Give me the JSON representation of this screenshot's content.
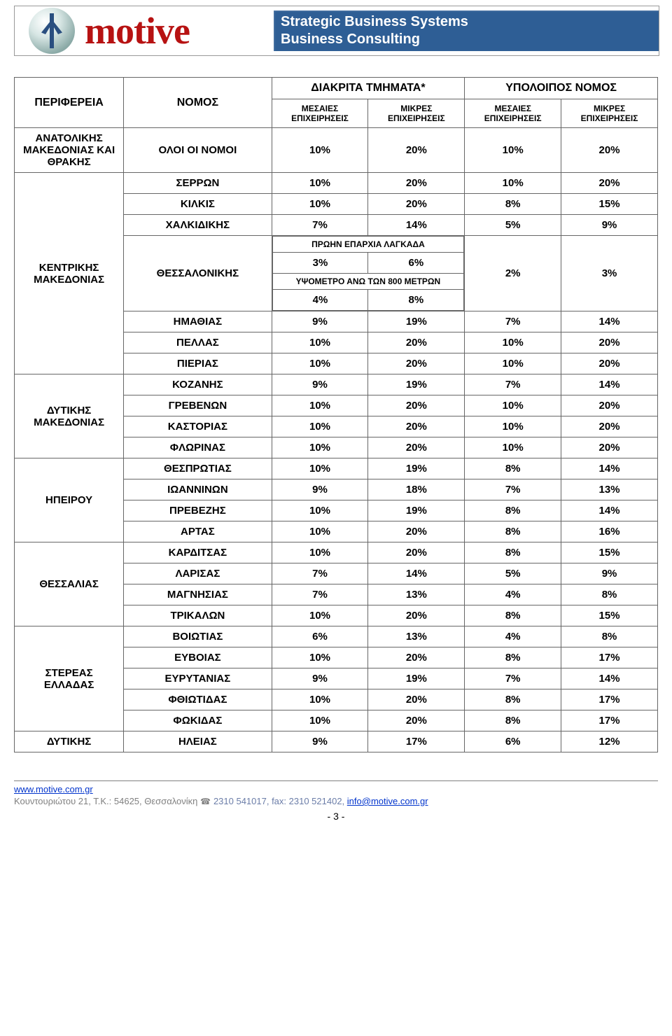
{
  "banner": {
    "brand": "motive",
    "tag1": "Strategic Business Systems",
    "tag2": "Business Consulting"
  },
  "header": {
    "col1": "ΠΕΡΙΦΕΡΕΙΑ",
    "col2": "ΝΟΜΟΣ",
    "group1": "ΔΙΑΚΡΙΤΑ ΤΜΗΜΑΤΑ*",
    "group2": "ΥΠΟΛΟΙΠΟΣ ΝΟΜΟΣ",
    "sub1": "ΜΕΣΑΙΕΣ ΕΠΙΧΕΙΡΗΣΕΙΣ",
    "sub2": "ΜΙΚΡΕΣ ΕΠΙΧΕΙΡΗΣΕΙΣ",
    "sub3": "ΜΕΣΑΙΕΣ ΕΠΙΧΕΙΡΗΣΕΙΣ",
    "sub4": "ΜΙΚΡΕΣ ΕΠΙΧΕΙΡΗΣΕΙΣ"
  },
  "regions": {
    "r1": "ΑΝΑΤΟΛΙΚΗΣ ΜΑΚΕΔΟΝΙΑΣ ΚΑΙ ΘΡΑΚΗΣ",
    "r2": "ΚΕΝΤΡΙΚΗΣ ΜΑΚΕΔΟΝΙΑΣ",
    "r3": "ΔΥΤΙΚΗΣ ΜΑΚΕΔΟΝΙΑΣ",
    "r4": "ΗΠΕΙΡΟΥ",
    "r5": "ΘΕΣΣΑΛΙΑΣ",
    "r6": "ΣΤΕΡΕΑΣ ΕΛΛΑΔΑΣ",
    "r7": "ΔΥΤΙΚΗΣ"
  },
  "rows": {
    "allnomoi": {
      "n": "ΟΛΟΙ ΟΙ ΝΟΜΟΙ",
      "a": "10%",
      "b": "20%",
      "c": "10%",
      "d": "20%"
    },
    "serron": {
      "n": "ΣΕΡΡΩΝ",
      "a": "10%",
      "b": "20%",
      "c": "10%",
      "d": "20%"
    },
    "kilkis": {
      "n": "ΚΙΛΚΙΣ",
      "a": "10%",
      "b": "20%",
      "c": "8%",
      "d": "15%"
    },
    "chalkidikis": {
      "n": "ΧΑΛΚΙΔΙΚΗΣ",
      "a": "7%",
      "b": "14%",
      "c": "5%",
      "d": "9%"
    },
    "thess": {
      "n": "ΘΕΣΣΑΛΟΝΙΚΗΣ",
      "c": "2%",
      "d": "3%"
    },
    "imathias": {
      "n": "ΗΜΑΘΙΑΣ",
      "a": "9%",
      "b": "19%",
      "c": "7%",
      "d": "14%"
    },
    "pellas": {
      "n": "ΠΕΛΛΑΣ",
      "a": "10%",
      "b": "20%",
      "c": "10%",
      "d": "20%"
    },
    "pierias": {
      "n": "ΠΙΕΡΙΑΣ",
      "a": "10%",
      "b": "20%",
      "c": "10%",
      "d": "20%"
    },
    "kozanis": {
      "n": "ΚΟΖΑΝΗΣ",
      "a": "9%",
      "b": "19%",
      "c": "7%",
      "d": "14%"
    },
    "grevenon": {
      "n": "ΓΡΕΒΕΝΩΝ",
      "a": "10%",
      "b": "20%",
      "c": "10%",
      "d": "20%"
    },
    "kastorias": {
      "n": "ΚΑΣΤΟΡΙΑΣ",
      "a": "10%",
      "b": "20%",
      "c": "10%",
      "d": "20%"
    },
    "florinas": {
      "n": "ΦΛΩΡΙΝΑΣ",
      "a": "10%",
      "b": "20%",
      "c": "10%",
      "d": "20%"
    },
    "thesprotias": {
      "n": "ΘΕΣΠΡΩΤΙΑΣ",
      "a": "10%",
      "b": "19%",
      "c": "8%",
      "d": "14%"
    },
    "ioanninon": {
      "n": "ΙΩΑΝΝΙΝΩΝ",
      "a": "9%",
      "b": "18%",
      "c": "7%",
      "d": "13%"
    },
    "prevezis": {
      "n": "ΠΡΕΒΕΖΗΣ",
      "a": "10%",
      "b": "19%",
      "c": "8%",
      "d": "14%"
    },
    "artas": {
      "n": "ΑΡΤΑΣ",
      "a": "10%",
      "b": "20%",
      "c": "8%",
      "d": "16%"
    },
    "karditsas": {
      "n": "ΚΑΡΔΙΤΣΑΣ",
      "a": "10%",
      "b": "20%",
      "c": "8%",
      "d": "15%"
    },
    "larisas": {
      "n": "ΛΑΡΙΣΑΣ",
      "a": "7%",
      "b": "14%",
      "c": "5%",
      "d": "9%"
    },
    "magnisias": {
      "n": "ΜΑΓΝΗΣΙΑΣ",
      "a": "7%",
      "b": "13%",
      "c": "4%",
      "d": "8%"
    },
    "trikalon": {
      "n": "ΤΡΙΚΑΛΩΝ",
      "a": "10%",
      "b": "20%",
      "c": "8%",
      "d": "15%"
    },
    "voiotias": {
      "n": "ΒΟΙΩΤΙΑΣ",
      "a": "6%",
      "b": "13%",
      "c": "4%",
      "d": "8%"
    },
    "evvoias": {
      "n": "ΕΥΒΟΙΑΣ",
      "a": "10%",
      "b": "20%",
      "c": "8%",
      "d": "17%"
    },
    "evrytanias": {
      "n": "ΕΥΡΥΤΑΝΙΑΣ",
      "a": "9%",
      "b": "19%",
      "c": "7%",
      "d": "14%"
    },
    "fthiotidas": {
      "n": "ΦΘΙΩΤΙΔΑΣ",
      "a": "10%",
      "b": "20%",
      "c": "8%",
      "d": "17%"
    },
    "fokidas": {
      "n": "ΦΩΚΙΔΑΣ",
      "a": "10%",
      "b": "20%",
      "c": "8%",
      "d": "17%"
    },
    "ileias": {
      "n": "ΗΛΕΙΑΣ",
      "a": "9%",
      "b": "17%",
      "c": "6%",
      "d": "12%"
    }
  },
  "nested": {
    "title1": "ΠΡΩΗΝ ΕΠΑΡΧΙΑ ΛΑΓΚΑΔΑ",
    "title2": "ΥΨΟΜΕΤΡΟ ΑΝΩ ΤΩΝ 800 ΜΕΤΡΩΝ",
    "r1a": "3%",
    "r1b": "6%",
    "r2a": "4%",
    "r2b": "8%"
  },
  "footer": {
    "url": "www.motive.com.gr",
    "addr1": "Κουντουριώτου 21, Τ.Κ.: 54625, Θεσσαλονίκη ",
    "phone": "2310 541017, fax: 2310 521402, ",
    "email": "info@motive.com.gr",
    "page": "- 3 -"
  }
}
